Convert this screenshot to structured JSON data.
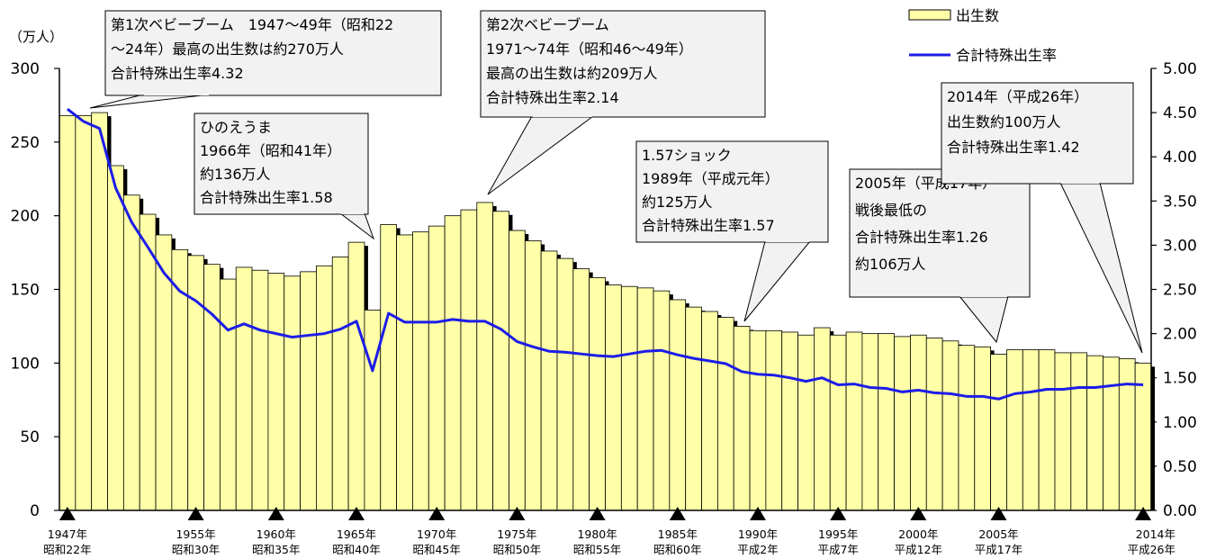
{
  "legend": {
    "bar_label": "出生数",
    "line_label": "合計特殊出生率"
  },
  "left_axis_unit": "（万人）",
  "annotations": [
    {
      "id": "baby-boom-1",
      "lines": [
        "第1次ベビーブーム　1947～49年（昭和22",
        "～24年）最高の出生数は約270万人",
        "合計特殊出生率4.32"
      ]
    },
    {
      "id": "hinoeuma",
      "lines": [
        "ひのえうま",
        "1966年（昭和41年）",
        "約136万人",
        "合計特殊出生率1.58"
      ]
    },
    {
      "id": "baby-boom-2",
      "lines": [
        "第2次ベビーブーム",
        "1971～74年（昭和46～49年）",
        "最高の出生数は約209万人",
        "合計特殊出生率2.14"
      ]
    },
    {
      "id": "shock-157",
      "lines": [
        "1.57ショック",
        "1989年（平成元年）",
        "約125万人",
        "合計特殊出生率1.57"
      ]
    },
    {
      "id": "lowest-2005",
      "lines": [
        "2005年（平成17年）",
        "戦後最低の",
        "合計特殊出生率1.26",
        "約106万人"
      ]
    },
    {
      "id": "year-2014",
      "lines": [
        "2014年（平成26年）",
        "出生数約100万人",
        "合計特殊出生率1.42"
      ]
    }
  ],
  "x_tick_labels": [
    {
      "year": 1947,
      "l1": "1947年",
      "l2": "昭和22年"
    },
    {
      "year": 1955,
      "l1": "1955年",
      "l2": "昭和30年"
    },
    {
      "year": 1960,
      "l1": "1960年",
      "l2": "昭和35年"
    },
    {
      "year": 1965,
      "l1": "1965年",
      "l2": "昭和40年"
    },
    {
      "year": 1970,
      "l1": "1970年",
      "l2": "昭和45年"
    },
    {
      "year": 1975,
      "l1": "1975年",
      "l2": "昭和50年"
    },
    {
      "year": 1980,
      "l1": "1980年",
      "l2": "昭和55年"
    },
    {
      "year": 1985,
      "l1": "1985年",
      "l2": "昭和60年"
    },
    {
      "year": 1990,
      "l1": "1990年",
      "l2": "平成2年"
    },
    {
      "year": 1995,
      "l1": "1995年",
      "l2": "平成7年"
    },
    {
      "year": 2000,
      "l1": "2000年",
      "l2": "平成12年"
    },
    {
      "year": 2005,
      "l1": "2005年",
      "l2": "平成17年"
    },
    {
      "year": 2014,
      "l1": "2014年",
      "l2": "平成26年"
    }
  ],
  "colors": {
    "bar_fill": "#FFFFA8",
    "bar_stroke": "#000000",
    "line": "#1C1CE8",
    "callout_fill": "#F2F2F2"
  },
  "chart_data": {
    "type": "bar",
    "years": [
      1947,
      1948,
      1949,
      1950,
      1951,
      1952,
      1953,
      1954,
      1955,
      1956,
      1957,
      1958,
      1959,
      1960,
      1961,
      1962,
      1963,
      1964,
      1965,
      1966,
      1967,
      1968,
      1969,
      1970,
      1971,
      1972,
      1973,
      1974,
      1975,
      1976,
      1977,
      1978,
      1979,
      1980,
      1981,
      1982,
      1983,
      1984,
      1985,
      1986,
      1987,
      1988,
      1989,
      1990,
      1991,
      1992,
      1993,
      1994,
      1995,
      1996,
      1997,
      1998,
      1999,
      2000,
      2001,
      2002,
      2003,
      2004,
      2005,
      2006,
      2007,
      2008,
      2009,
      2010,
      2011,
      2012,
      2013,
      2014
    ],
    "series": [
      {
        "name": "出生数",
        "axis": "left",
        "type": "bar",
        "values": [
          268,
          268,
          270,
          234,
          214,
          201,
          187,
          177,
          173,
          167,
          157,
          165,
          163,
          161,
          159,
          162,
          166,
          172,
          182,
          136,
          194,
          187,
          189,
          193,
          200,
          204,
          209,
          203,
          190,
          183,
          176,
          171,
          164,
          158,
          153,
          152,
          151,
          149,
          143,
          138,
          135,
          131,
          125,
          122,
          122,
          121,
          119,
          124,
          119,
          121,
          120,
          120,
          118,
          119,
          117,
          115,
          112,
          111,
          106,
          109,
          109,
          109,
          107,
          107,
          105,
          104,
          103,
          100
        ]
      },
      {
        "name": "合計特殊出生率",
        "axis": "right",
        "type": "line",
        "values": [
          4.54,
          4.4,
          4.32,
          3.65,
          3.26,
          2.98,
          2.69,
          2.48,
          2.37,
          2.22,
          2.04,
          2.11,
          2.04,
          2.0,
          1.96,
          1.98,
          2.0,
          2.05,
          2.14,
          1.58,
          2.23,
          2.13,
          2.13,
          2.13,
          2.16,
          2.14,
          2.14,
          2.05,
          1.91,
          1.85,
          1.8,
          1.79,
          1.77,
          1.75,
          1.74,
          1.77,
          1.8,
          1.81,
          1.76,
          1.72,
          1.69,
          1.66,
          1.57,
          1.54,
          1.53,
          1.5,
          1.46,
          1.5,
          1.42,
          1.43,
          1.39,
          1.38,
          1.34,
          1.36,
          1.33,
          1.32,
          1.29,
          1.29,
          1.26,
          1.32,
          1.34,
          1.37,
          1.37,
          1.39,
          1.39,
          1.41,
          1.43,
          1.42
        ]
      }
    ],
    "left_axis": {
      "min": 0,
      "max": 300,
      "ticks": [
        "0",
        "50",
        "100",
        "150",
        "200",
        "250",
        "300"
      ]
    },
    "right_axis": {
      "min": 0,
      "max": 5,
      "ticks": [
        "0.00",
        "0.50",
        "1.00",
        "1.50",
        "2.00",
        "2.50",
        "3.00",
        "3.50",
        "4.00",
        "4.50",
        "5.00"
      ]
    },
    "grid": false,
    "legend_position": "top-right"
  }
}
